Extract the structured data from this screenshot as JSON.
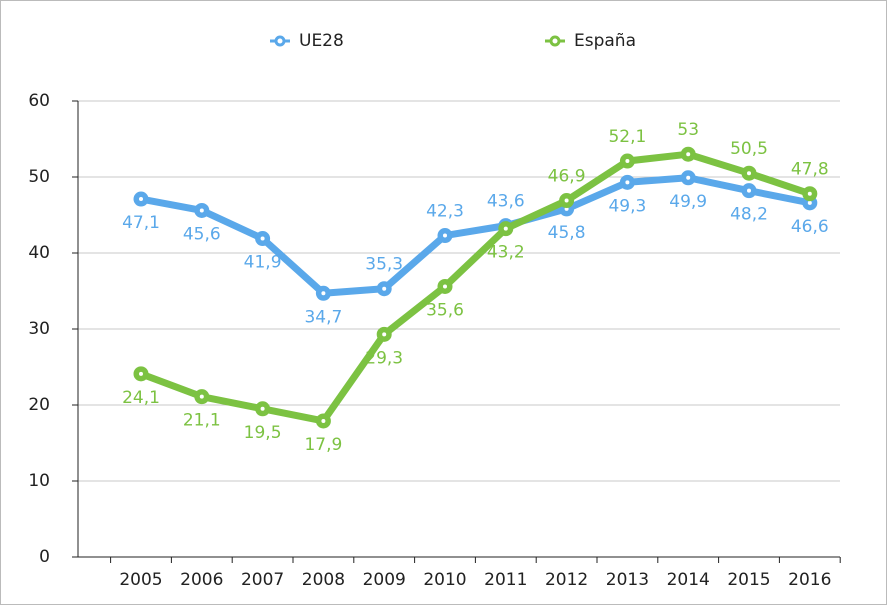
{
  "chart_data": {
    "type": "line",
    "categories": [
      "2005",
      "2006",
      "2007",
      "2008",
      "2009",
      "2010",
      "2011",
      "2012",
      "2013",
      "2014",
      "2015",
      "2016"
    ],
    "series": [
      {
        "name": "UE28",
        "color": "#5aa8ea",
        "values": [
          47.1,
          45.6,
          41.9,
          34.7,
          35.3,
          42.3,
          43.6,
          45.8,
          49.3,
          49.9,
          48.2,
          46.6
        ],
        "value_labels": [
          "47,1",
          "45,6",
          "41,9",
          "34,7",
          "35,3",
          "42,3",
          "43,6",
          "45,8",
          "49,3",
          "49,9",
          "48,2",
          "46,6"
        ]
      },
      {
        "name": "España",
        "color": "#7cc242",
        "values": [
          24.1,
          21.1,
          19.5,
          17.9,
          29.3,
          35.6,
          43.2,
          46.9,
          52.1,
          53,
          50.5,
          47.8
        ],
        "value_labels": [
          "24,1",
          "21,1",
          "19,5",
          "17,9",
          "29,3",
          "35,6",
          "43,2",
          "46,9",
          "52,1",
          "53",
          "50,5",
          "47,8"
        ]
      }
    ],
    "ylim": [
      0,
      60
    ],
    "yticks": [
      0,
      10,
      20,
      30,
      40,
      50,
      60
    ],
    "grid": true,
    "legend": "top"
  }
}
